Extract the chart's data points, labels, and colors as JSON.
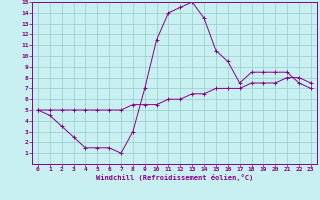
{
  "xlabel": "Windchill (Refroidissement éolien,°C)",
  "xlim": [
    -0.5,
    23.5
  ],
  "ylim": [
    0,
    15
  ],
  "xticks": [
    0,
    1,
    2,
    3,
    4,
    5,
    6,
    7,
    8,
    9,
    10,
    11,
    12,
    13,
    14,
    15,
    16,
    17,
    18,
    19,
    20,
    21,
    22,
    23
  ],
  "yticks": [
    1,
    2,
    3,
    4,
    5,
    6,
    7,
    8,
    9,
    10,
    11,
    12,
    13,
    14,
    15
  ],
  "bg_color": "#c8f0f0",
  "line_color": "#880088",
  "grid_color": "#99cccc",
  "series1_x": [
    0,
    1,
    2,
    3,
    4,
    5,
    6,
    7,
    8,
    9,
    10,
    11,
    12,
    13,
    14,
    15,
    16,
    17,
    18,
    19,
    20,
    21,
    22,
    23
  ],
  "series1_y": [
    5,
    4.5,
    3.5,
    2.5,
    1.5,
    1.5,
    1.5,
    1.0,
    3.0,
    7.0,
    11.5,
    14.0,
    14.5,
    15.0,
    13.5,
    10.5,
    9.5,
    7.5,
    8.5,
    8.5,
    8.5,
    8.5,
    7.5,
    7.0
  ],
  "series2_x": [
    0,
    1,
    2,
    3,
    4,
    5,
    6,
    7,
    8,
    9,
    10,
    11,
    12,
    13,
    14,
    15,
    16,
    17,
    18,
    19,
    20,
    21,
    22,
    23
  ],
  "series2_y": [
    5.0,
    5.0,
    5.0,
    5.0,
    5.0,
    5.0,
    5.0,
    5.0,
    5.5,
    5.5,
    5.5,
    6.0,
    6.0,
    6.5,
    6.5,
    7.0,
    7.0,
    7.0,
    7.5,
    7.5,
    7.5,
    8.0,
    8.0,
    7.5
  ],
  "tick_fontsize": 4.5,
  "xlabel_fontsize": 5.0
}
